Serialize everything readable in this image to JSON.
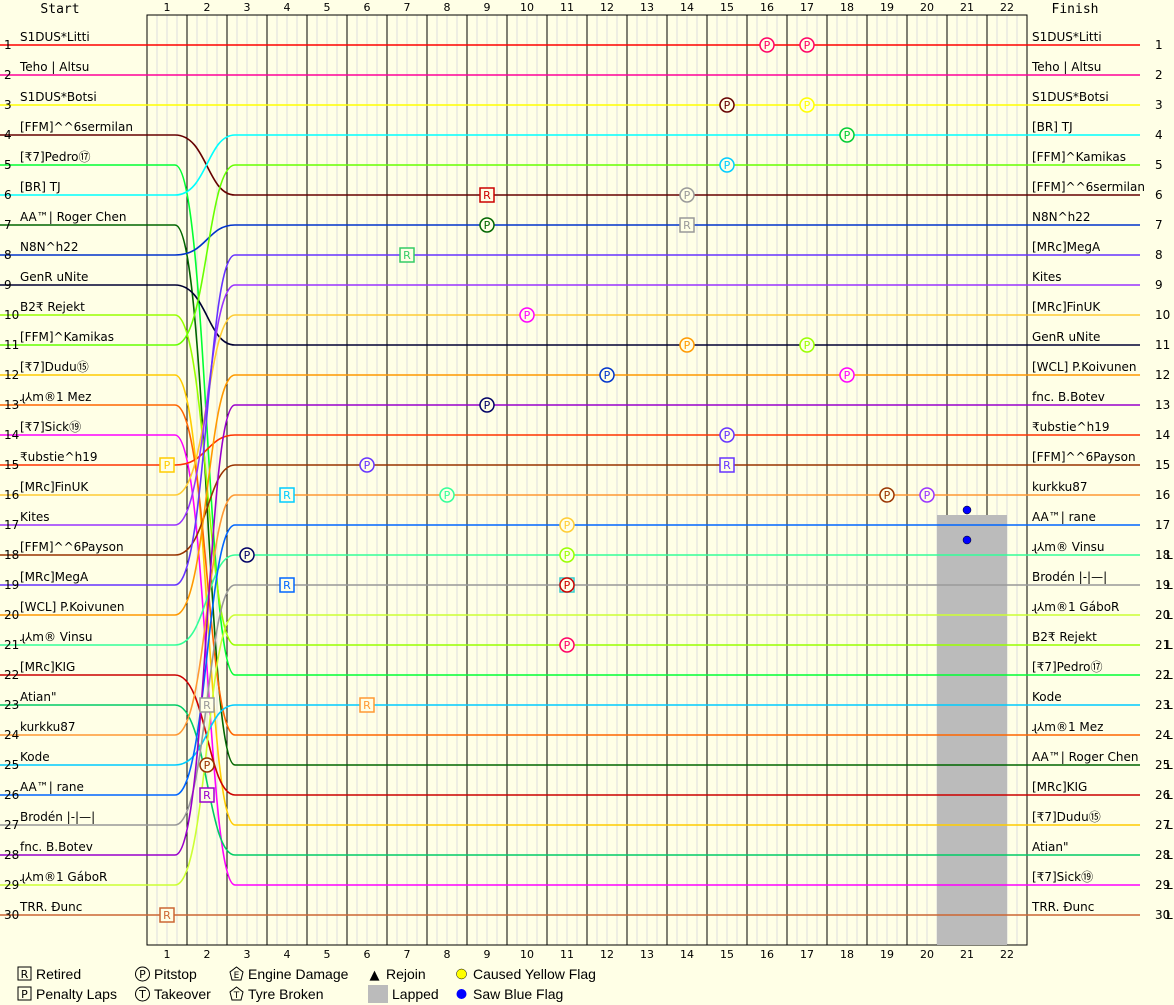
{
  "chart_data": {
    "type": "line",
    "header": {
      "start": "Start",
      "finish": "Finish"
    },
    "laps": [
      "1",
      "2",
      "3",
      "4",
      "5",
      "6",
      "7",
      "8",
      "9",
      "10",
      "11",
      "12",
      "13",
      "14",
      "15",
      "16",
      "17",
      "18",
      "19",
      "20",
      "21",
      "22"
    ],
    "positions": [
      "1",
      "2",
      "3",
      "4",
      "5",
      "6",
      "7",
      "8",
      "9",
      "10",
      "11",
      "12",
      "13",
      "14",
      "15",
      "16",
      "17",
      "18",
      "19",
      "20",
      "21",
      "22",
      "23",
      "24",
      "25",
      "26",
      "27",
      "28",
      "29",
      "30"
    ],
    "start_grid": [
      "S1DUS*Litti",
      "Teho | Altsu",
      "S1DUS*Botsi",
      "[FFM]^^6sermilan",
      "[₹7]Pedro⑰",
      "[BR] TJ",
      "AA™| Roger Chen",
      "N8N^h22",
      "GenR uNite",
      "B2₹ Rejekt",
      "[FFM]^Kamikas",
      "[₹7]Dudu⑮",
      "ɻ⅄m®1 Mez",
      "[₹7]Sick⑲",
      "₹ubstie^h19",
      "[MRc]FinUK",
      "Kites",
      "[FFM]^^6Payson",
      "[MRc]MegA",
      "[WCL] P.Koivunen",
      "ɻ⅄m® Vinsu",
      "[MRc]KIG",
      "Atian\"",
      "kurkku87",
      "Kode",
      "AA™| rane",
      "Brodén |-|—|",
      "fnc. B.Botev",
      "ɻ⅄m®1 GáboR",
      "TRR. Ðunc"
    ],
    "finish_order": [
      "S1DUS*Litti",
      "Teho | Altsu",
      "S1DUS*Botsi",
      "[BR] TJ",
      "[FFM]^Kamikas",
      "[FFM]^^6sermilan",
      "N8N^h22",
      "[MRc]MegA",
      "Kites",
      "[MRc]FinUK",
      "GenR uNite",
      "[WCL] P.Koivunen",
      "fnc. B.Botev",
      "₹ubstie^h19",
      "[FFM]^^6Payson",
      "kurkku87",
      "AA™| rane",
      "ɻ⅄m® Vinsu",
      "Brodén |-|—|",
      "ɻ⅄m®1 GáboR",
      "B2₹ Rejekt",
      "[₹7]Pedro⑰",
      "Kode",
      "ɻ⅄m®1 Mez",
      "AA™| Roger Chen",
      "[MRc]KIG",
      "[₹7]Dudu⑮",
      "Atian\"",
      "[₹7]Sick⑲",
      "TRR. Ðunc"
    ],
    "finish_pos_labels": [
      "1",
      "2",
      "3",
      "4",
      "5",
      "6",
      "7",
      "8",
      "9",
      "10",
      "11",
      "12",
      "13",
      "14",
      "15",
      "16",
      "17",
      "18",
      "19",
      "20",
      "21",
      "22",
      "23",
      "24",
      "25",
      "26",
      "27",
      "28",
      "29",
      "30"
    ],
    "finish_suffix": {
      "18": "L",
      "19": "L",
      "20": "L",
      "21": "L",
      "22": "L",
      "23": "L",
      "24": "L",
      "25": "L",
      "26": "L",
      "27": "L",
      "28": "L",
      "29": "L",
      "30": "L"
    },
    "series_colors": [
      "#ff0000",
      "#ff0099",
      "#ffff00",
      "#660000",
      "#00ff33",
      "#00ffff",
      "#006600",
      "#0033cc",
      "#000033",
      "#99ff00",
      "#66ff00",
      "#ffcc00",
      "#ff6600",
      "#ff00ff",
      "#ff3300",
      "#ffcc33",
      "#9933ff",
      "#993300",
      "#6633ff",
      "#ff9900",
      "#33ff99",
      "#cc0000",
      "#00cc66",
      "#ff9933",
      "#00ccff",
      "#0066ff",
      "#999999",
      "#9900cc",
      "#ccff33",
      "#cc6633"
    ],
    "laps_lapped": {
      "start": 20,
      "end": 22
    },
    "annotations": [
      {
        "lap": 16,
        "pos": 1,
        "sym": "P",
        "color": "#ff0066"
      },
      {
        "lap": 17,
        "pos": 1,
        "sym": "P",
        "color": "#ff0066"
      },
      {
        "lap": 15,
        "pos": 3,
        "sym": "P",
        "color": "#660000"
      },
      {
        "lap": 17,
        "pos": 3,
        "sym": "P",
        "color": "#ffff00"
      },
      {
        "lap": 18,
        "pos": 4,
        "sym": "P",
        "color": "#00cc33"
      },
      {
        "lap": 15,
        "pos": 5,
        "sym": "P",
        "color": "#00ccff"
      },
      {
        "lap": 9,
        "pos": 6,
        "sym": "R",
        "color": "#cc0000",
        "box": true
      },
      {
        "lap": 14,
        "pos": 6,
        "sym": "P",
        "color": "#999999"
      },
      {
        "lap": 9,
        "pos": 7,
        "sym": "P",
        "color": "#006600"
      },
      {
        "lap": 14,
        "pos": 7,
        "sym": "R",
        "color": "#999999",
        "box": true
      },
      {
        "lap": 7,
        "pos": 8,
        "sym": "R",
        "color": "#33cc66",
        "box": true
      },
      {
        "lap": 10,
        "pos": 10,
        "sym": "P",
        "color": "#ff00ff"
      },
      {
        "lap": 14,
        "pos": 11,
        "sym": "P",
        "color": "#ff9900"
      },
      {
        "lap": 17,
        "pos": 11,
        "sym": "P",
        "color": "#99ff00"
      },
      {
        "lap": 12,
        "pos": 12,
        "sym": "P",
        "color": "#0033cc"
      },
      {
        "lap": 18,
        "pos": 12,
        "sym": "P",
        "color": "#ff00ff"
      },
      {
        "lap": 9,
        "pos": 13,
        "sym": "P",
        "color": "#000066"
      },
      {
        "lap": 15,
        "pos": 14,
        "sym": "P",
        "color": "#6633ff"
      },
      {
        "lap": 6,
        "pos": 15,
        "sym": "P",
        "color": "#6633ff"
      },
      {
        "lap": 15,
        "pos": 15,
        "sym": "R",
        "color": "#6633ff",
        "box": true
      },
      {
        "lap": 4,
        "pos": 16,
        "sym": "R",
        "color": "#00ccff",
        "box": true
      },
      {
        "lap": 8,
        "pos": 16,
        "sym": "P",
        "color": "#33ff99"
      },
      {
        "lap": 11,
        "pos": 17,
        "sym": "P",
        "color": "#ffcc33"
      },
      {
        "lap": 11,
        "pos": 18,
        "sym": "P",
        "color": "#99ff00"
      },
      {
        "lap": 19,
        "pos": 16,
        "sym": "P",
        "color": "#993300"
      },
      {
        "lap": 20,
        "pos": 16,
        "sym": "P",
        "color": "#9933ff"
      },
      {
        "lap": 3,
        "pos": 18,
        "sym": "P",
        "color": "#000066"
      },
      {
        "lap": 4,
        "pos": 19,
        "sym": "R",
        "color": "#0066ff",
        "box": true
      },
      {
        "lap": 11,
        "pos": 19,
        "sym": "R",
        "color": "#33cccc",
        "box": true
      },
      {
        "lap": 11,
        "pos": 19,
        "sym": "P",
        "color": "#cc0000"
      },
      {
        "lap": 11,
        "pos": 21,
        "sym": "P",
        "color": "#ff0066"
      },
      {
        "lap": 6,
        "pos": 23,
        "sym": "R",
        "color": "#ff9933",
        "box": true
      },
      {
        "lap": 2,
        "pos": 23,
        "sym": "R",
        "color": "#999999",
        "box": true
      },
      {
        "lap": 2,
        "pos": 25,
        "sym": "P",
        "color": "#993300"
      },
      {
        "lap": 2,
        "pos": 26,
        "sym": "R",
        "color": "#9900cc",
        "box": true
      },
      {
        "lap": 1,
        "pos": 30,
        "sym": "R",
        "color": "#cc6633",
        "box": true
      },
      {
        "lap": 1,
        "pos": 15,
        "sym": "P",
        "color": "#ffcc00",
        "box": true
      }
    ],
    "flags": [
      {
        "lap": 21,
        "pos": 17,
        "type": "blue"
      },
      {
        "lap": 21,
        "pos": 18,
        "type": "blue"
      }
    ],
    "legend": [
      {
        "sym": "R",
        "text": "Retired",
        "shape": "box"
      },
      {
        "sym": "P",
        "text": "Pitstop",
        "shape": "circle"
      },
      {
        "sym": "E",
        "text": "Engine Damage",
        "shape": "penta"
      },
      {
        "sym": "▲",
        "text": "Rejoin",
        "shape": "tri"
      },
      {
        "sym": "",
        "text": "Caused Yellow Flag",
        "shape": "yellow"
      },
      {
        "sym": "P",
        "text": "Penalty Laps",
        "shape": "box"
      },
      {
        "sym": "T",
        "text": "Takeover",
        "shape": "circle"
      },
      {
        "sym": "T",
        "text": "Tyre Broken",
        "shape": "penta"
      },
      {
        "sym": "",
        "text": "Lapped",
        "shape": "grey"
      },
      {
        "sym": "",
        "text": "Saw Blue Flag",
        "shape": "blue"
      }
    ]
  }
}
